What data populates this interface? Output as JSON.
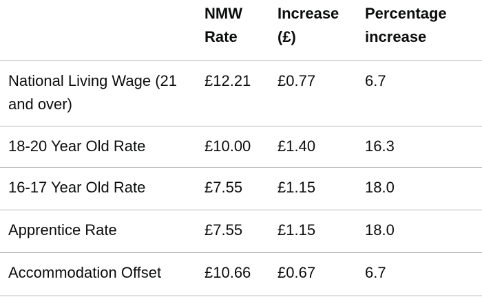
{
  "table": {
    "header": [
      "",
      "NMW Rate",
      "Increase (£)",
      "Percentage increase"
    ],
    "rows": [
      [
        "National Living Wage (21 and over)",
        "£12.21",
        "£0.77",
        "6.7"
      ],
      [
        "18-20 Year Old Rate",
        "£10.00",
        "£1.40",
        "16.3"
      ],
      [
        "16-17 Year Old Rate",
        "£7.55",
        "£1.15",
        "18.0"
      ],
      [
        "Apprentice Rate",
        "£7.55",
        "£1.15",
        "18.0"
      ],
      [
        "Accommodation Offset",
        "£10.66",
        "£0.67",
        "6.7"
      ]
    ]
  }
}
